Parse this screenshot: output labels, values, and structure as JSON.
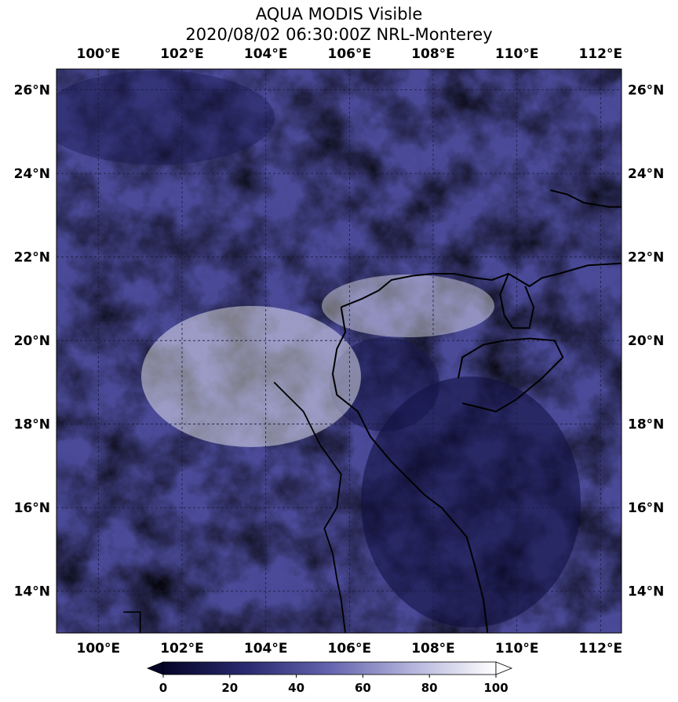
{
  "title": {
    "line1": "AQUA MODIS Visible",
    "line2": "2020/08/02 06:30:00Z NRL-Monterey"
  },
  "map": {
    "lon_range": [
      99.0,
      112.5
    ],
    "lat_range": [
      13.0,
      26.5
    ],
    "lon_ticks": [
      {
        "value": 100,
        "label": "100°E"
      },
      {
        "value": 102,
        "label": "102°E"
      },
      {
        "value": 104,
        "label": "104°E"
      },
      {
        "value": 106,
        "label": "106°E"
      },
      {
        "value": 108,
        "label": "108°E"
      },
      {
        "value": 110,
        "label": "110°E"
      },
      {
        "value": 112,
        "label": "112°E"
      }
    ],
    "lat_ticks": [
      {
        "value": 14,
        "label": "14°N"
      },
      {
        "value": 16,
        "label": "16°N"
      },
      {
        "value": 18,
        "label": "18°N"
      },
      {
        "value": 20,
        "label": "20°N"
      },
      {
        "value": 22,
        "label": "22°N"
      },
      {
        "value": 24,
        "label": "24°N"
      },
      {
        "value": 26,
        "label": "26°N"
      }
    ],
    "gridlines": "dashed"
  },
  "colorbar": {
    "min": 0,
    "max": 100,
    "extend": "both",
    "ticks": [
      {
        "value": 0,
        "label": "0"
      },
      {
        "value": 20,
        "label": "20"
      },
      {
        "value": 40,
        "label": "40"
      },
      {
        "value": 60,
        "label": "60"
      },
      {
        "value": 80,
        "label": "80"
      },
      {
        "value": 100,
        "label": "100"
      }
    ],
    "colors": {
      "low": "#050528",
      "mid": "#5a5aa8",
      "high": "#ffffff"
    }
  },
  "coastline": {
    "gulf_of_tonkin": [
      [
        105.8,
        20.8
      ],
      [
        106.3,
        21.0
      ],
      [
        106.7,
        21.2
      ],
      [
        107.0,
        21.45
      ],
      [
        107.5,
        21.55
      ],
      [
        108.0,
        21.6
      ],
      [
        108.5,
        21.6
      ],
      [
        109.0,
        21.5
      ],
      [
        109.4,
        21.45
      ],
      [
        109.8,
        21.6
      ],
      [
        110.3,
        21.3
      ],
      [
        110.6,
        21.5
      ],
      [
        111.0,
        21.6
      ],
      [
        111.7,
        21.8
      ],
      [
        112.5,
        21.85
      ]
    ],
    "leizhou_west": [
      [
        109.8,
        21.6
      ],
      [
        109.6,
        21.1
      ],
      [
        109.7,
        20.6
      ],
      [
        109.9,
        20.3
      ],
      [
        110.3,
        20.3
      ],
      [
        110.4,
        20.8
      ],
      [
        110.2,
        21.3
      ]
    ],
    "vietnam_coast": [
      [
        105.8,
        20.8
      ],
      [
        105.9,
        20.2
      ],
      [
        105.7,
        19.8
      ],
      [
        105.6,
        19.2
      ],
      [
        105.7,
        18.7
      ],
      [
        106.2,
        18.3
      ],
      [
        106.5,
        17.7
      ],
      [
        107.0,
        17.1
      ],
      [
        107.8,
        16.3
      ],
      [
        108.2,
        16.0
      ],
      [
        108.8,
        15.3
      ],
      [
        109.0,
        14.6
      ],
      [
        109.2,
        13.8
      ],
      [
        109.3,
        13.0
      ]
    ],
    "hainan": [
      [
        108.6,
        19.1
      ],
      [
        108.7,
        19.6
      ],
      [
        109.2,
        19.9
      ],
      [
        109.7,
        20.0
      ],
      [
        110.3,
        20.05
      ],
      [
        110.9,
        20.0
      ],
      [
        111.1,
        19.6
      ],
      [
        110.6,
        19.1
      ],
      [
        110.0,
        18.6
      ],
      [
        109.5,
        18.3
      ],
      [
        109.1,
        18.4
      ],
      [
        108.7,
        18.5
      ]
    ],
    "china_north": [
      [
        110.8,
        23.6
      ],
      [
        111.2,
        23.5
      ],
      [
        111.6,
        23.3
      ],
      [
        112.2,
        23.2
      ],
      [
        112.5,
        23.2
      ]
    ]
  },
  "borders": {
    "laos_thai": [
      [
        104.2,
        19.0
      ],
      [
        104.9,
        18.3
      ],
      [
        105.3,
        17.5
      ],
      [
        105.8,
        16.8
      ],
      [
        105.7,
        16.0
      ],
      [
        105.4,
        15.5
      ],
      [
        105.6,
        14.9
      ],
      [
        105.7,
        14.3
      ],
      [
        105.8,
        13.8
      ],
      [
        105.9,
        13.0
      ]
    ],
    "misc": [
      [
        100.6,
        13.5
      ],
      [
        101.0,
        13.5
      ],
      [
        101.0,
        13.0
      ]
    ]
  }
}
